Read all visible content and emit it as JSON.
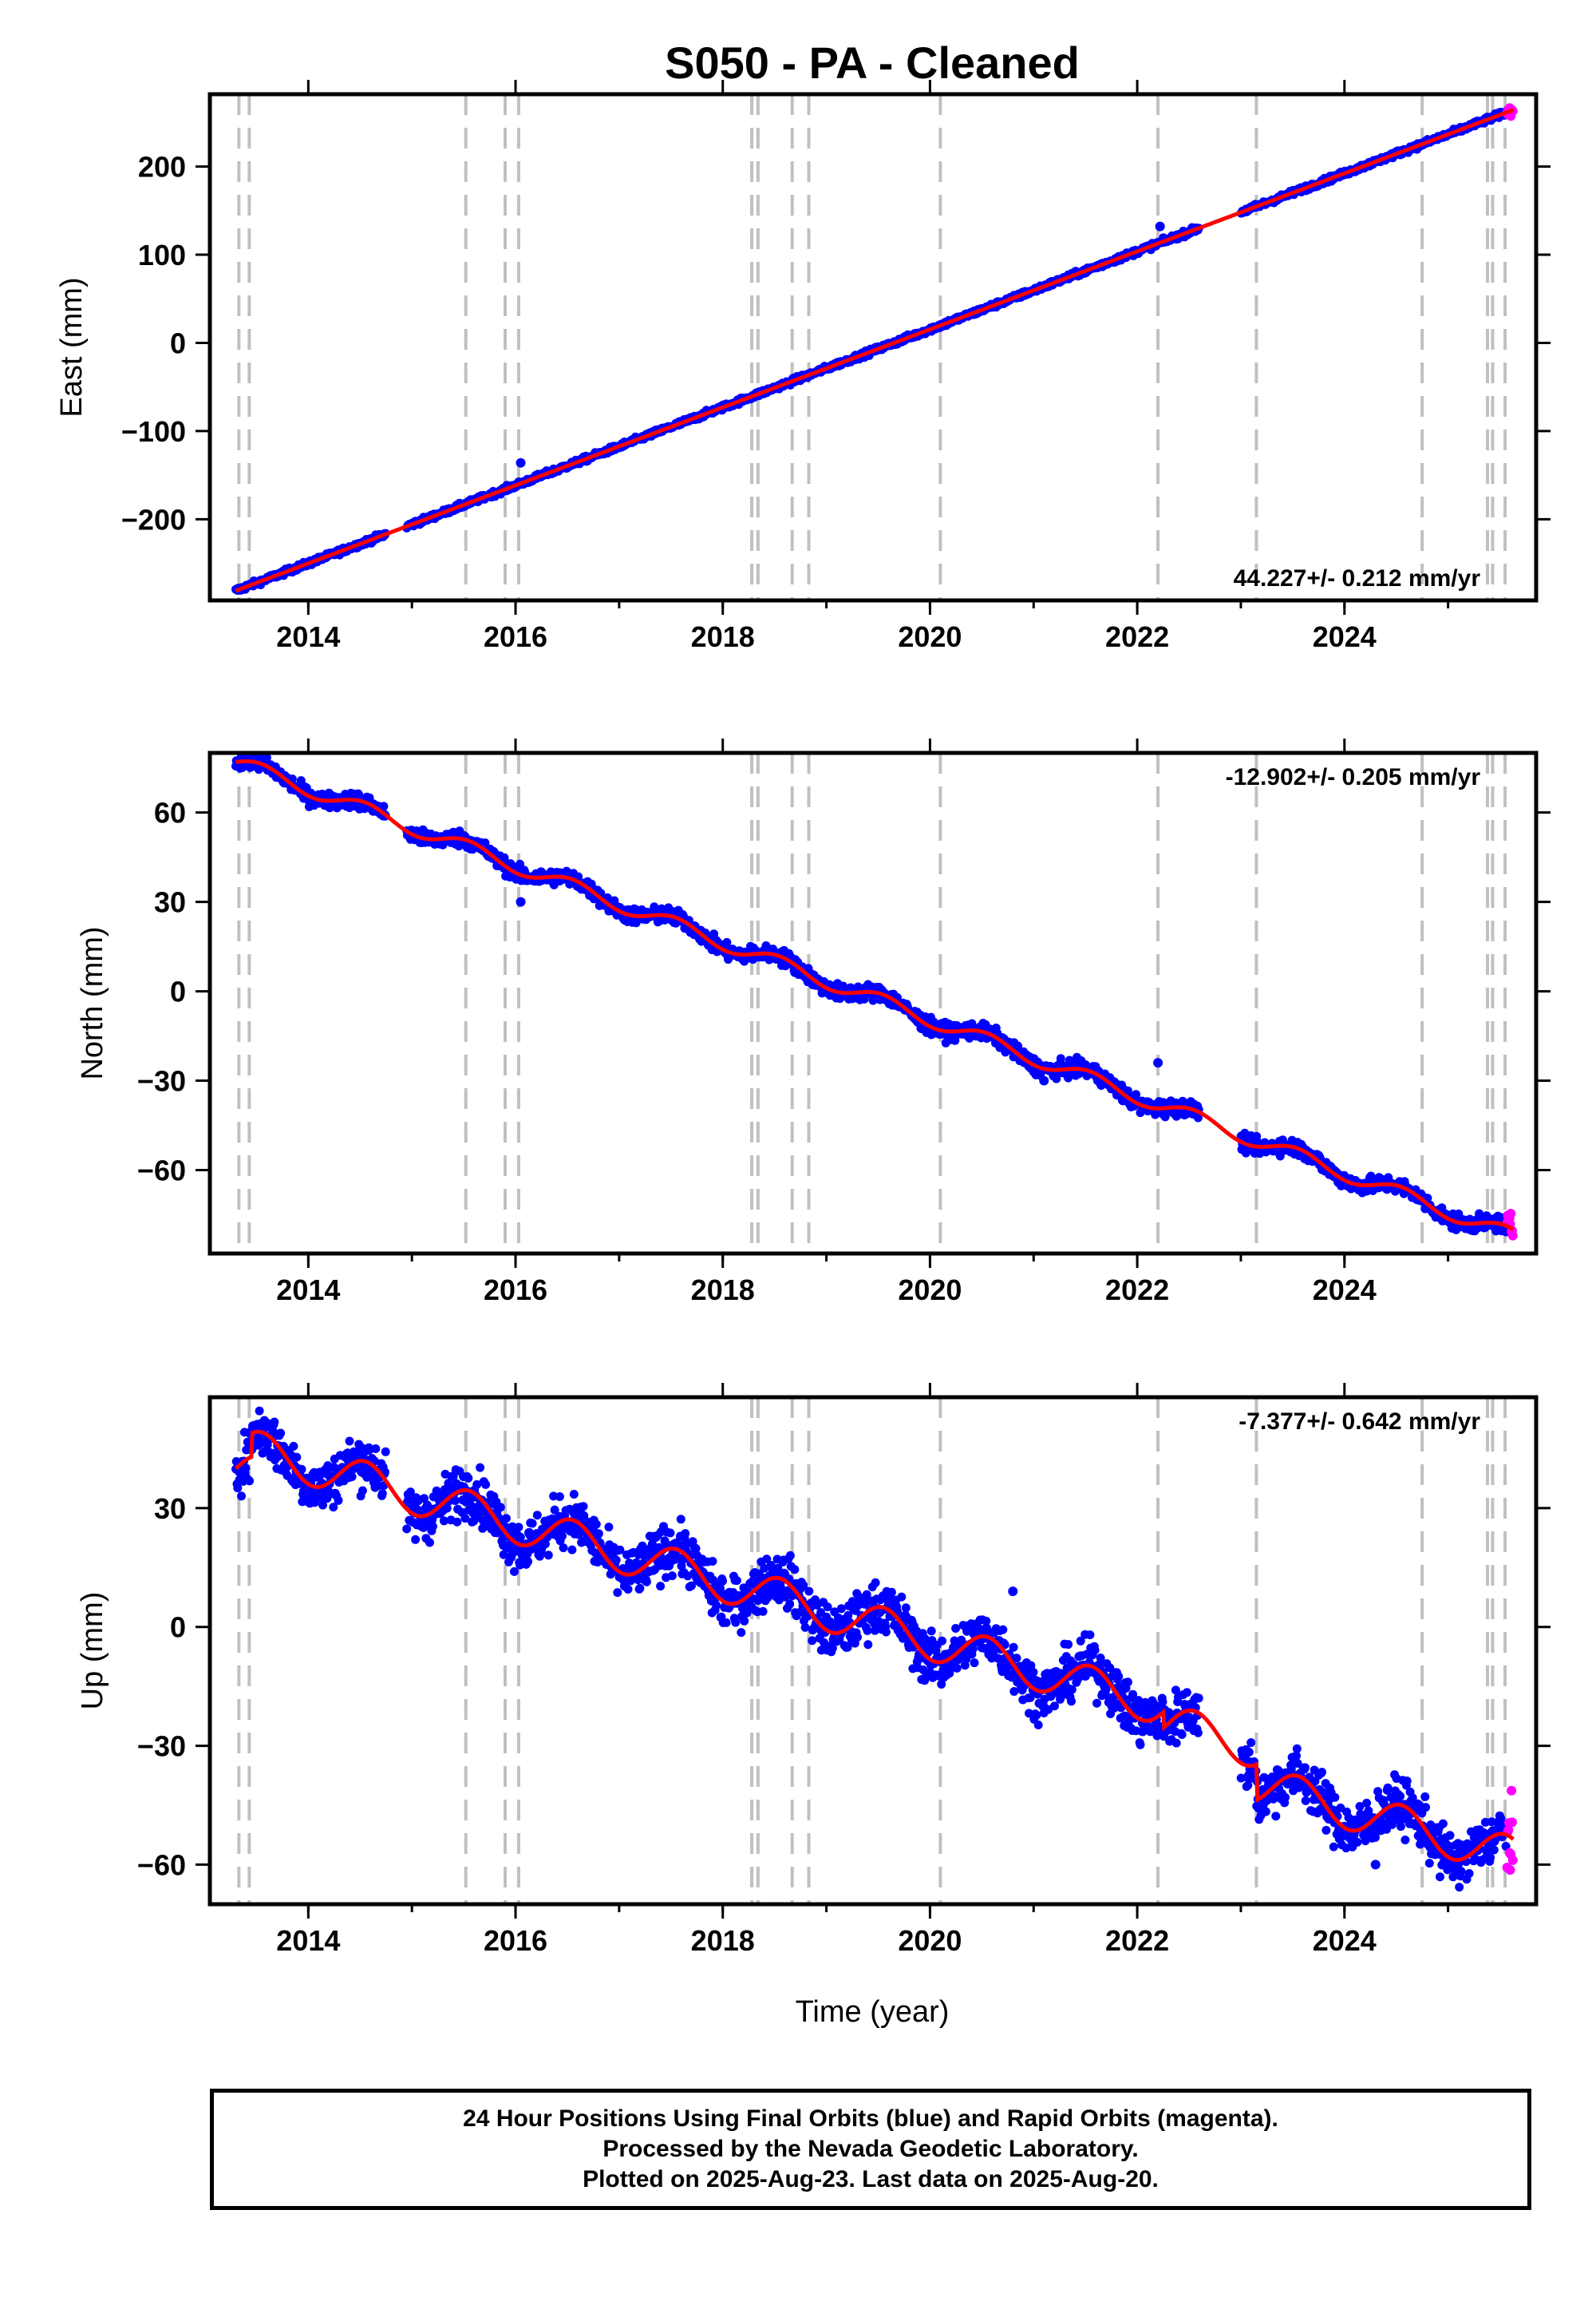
{
  "title": "S050  - PA - Cleaned",
  "xlabel": "Time (year)",
  "colors": {
    "final_orbits": "#0000ff",
    "rapid_orbits": "#ff00ff",
    "model": "#ff0000",
    "event_lines": "#c0c0c0"
  },
  "chart_data": [
    {
      "type": "scatter",
      "panel": "east",
      "ylabel": "East (mm)",
      "rate_label": "44.227+/- 0.212 mm/yr",
      "rate_position": "bottom-right",
      "xlim": [
        2013.05,
        2025.85
      ],
      "ylim": [
        -292,
        282
      ],
      "xticks": [
        2014,
        2016,
        2018,
        2020,
        2022,
        2024
      ],
      "yticks": [
        -200,
        -100,
        0,
        100,
        200
      ],
      "ytick_labels": [
        "−200",
        "−100",
        "0",
        "100",
        "200"
      ],
      "rate_mm_per_yr": 44.227,
      "noise_mm": 1.5,
      "series": [
        {
          "name": "Final Orbits",
          "x_range": [
            2013.3,
            2025.56
          ],
          "anchor": [
            2013.3,
            -281
          ]
        },
        {
          "name": "Rapid Orbits",
          "x_range": [
            2025.57,
            2025.63
          ]
        }
      ],
      "outliers": [
        [
          2016.05,
          -136
        ],
        [
          2022.22,
          132
        ]
      ],
      "gaps": [
        [
          2014.75,
          2014.95
        ],
        [
          2022.6,
          2023.0
        ]
      ]
    },
    {
      "type": "scatter",
      "panel": "north",
      "ylabel": "North (mm)",
      "rate_label": "-12.902+/- 0.205 mm/yr",
      "rate_position": "top-right",
      "xlim": [
        2013.05,
        2025.85
      ],
      "ylim": [
        -88,
        80
      ],
      "xticks": [
        2014,
        2016,
        2018,
        2020,
        2022,
        2024
      ],
      "yticks": [
        -60,
        -30,
        0,
        30,
        60
      ],
      "ytick_labels": [
        "−60",
        "−30",
        "0",
        "30",
        "60"
      ],
      "rate_mm_per_yr": -12.902,
      "seasonal_amplitude_mm": 2.5,
      "noise_mm": 1.3,
      "series": [
        {
          "name": "Final Orbits",
          "x_range": [
            2013.3,
            2025.56
          ],
          "anchor": [
            2013.3,
            77
          ]
        },
        {
          "name": "Rapid Orbits",
          "x_range": [
            2025.57,
            2025.63
          ]
        }
      ],
      "outliers": [
        [
          2016.05,
          30
        ],
        [
          2022.2,
          -24
        ],
        [
          2021.1,
          -30
        ]
      ],
      "gaps": [
        [
          2014.75,
          2014.95
        ],
        [
          2022.6,
          2023.0
        ]
      ]
    },
    {
      "type": "scatter",
      "panel": "up",
      "ylabel": "Up (mm)",
      "rate_label": "-7.377+/- 0.642 mm/yr",
      "rate_position": "top-right",
      "xlim": [
        2013.05,
        2025.85
      ],
      "ylim": [
        -70,
        58
      ],
      "xticks": [
        2014,
        2016,
        2018,
        2020,
        2022,
        2024
      ],
      "yticks": [
        -60,
        -30,
        0,
        30
      ],
      "ytick_labels": [
        "−60",
        "−30",
        "0",
        "30"
      ],
      "rate_mm_per_yr": -7.377,
      "seasonal_amplitude_mm": 5,
      "noise_mm": 3.2,
      "series": [
        {
          "name": "Final Orbits",
          "x_range": [
            2013.3,
            2025.56
          ],
          "anchor": [
            2013.3,
            40
          ]
        },
        {
          "name": "Rapid Orbits",
          "x_range": [
            2025.57,
            2025.63
          ]
        }
      ],
      "offsets": [
        [
          2013.45,
          6
        ],
        [
          2022.25,
          -4
        ],
        [
          2023.15,
          -9
        ]
      ],
      "outliers": [
        [
          2020.8,
          9
        ],
        [
          2024.3,
          -60
        ]
      ],
      "gaps": [
        [
          2014.75,
          2014.95
        ],
        [
          2022.6,
          2023.0
        ]
      ]
    }
  ],
  "event_lines": [
    2013.33,
    2013.43,
    2015.52,
    2015.9,
    2016.03,
    2018.28,
    2018.34,
    2018.67,
    2018.83,
    2020.1,
    2022.2,
    2023.15,
    2024.75,
    2025.38,
    2025.43,
    2025.55
  ],
  "footer": {
    "line1": "24 Hour Positions Using Final Orbits (blue) and Rapid Orbits (magenta).",
    "line2": "Processed by the Nevada Geodetic Laboratory.",
    "line3": "Plotted on 2025-Aug-23. Last data on 2025-Aug-20."
  }
}
